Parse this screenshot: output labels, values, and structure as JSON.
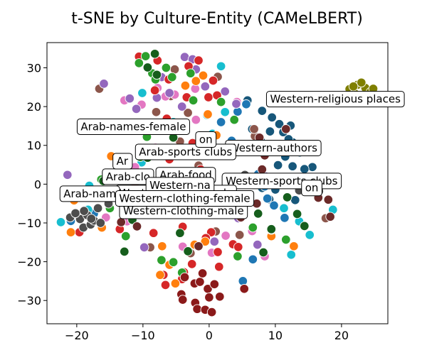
{
  "chart_data": {
    "type": "scatter",
    "title": "t-SNE by Culture-Entity (CAMeLBERT)",
    "xlabel": "",
    "ylabel": "",
    "xlim": [
      -24.5,
      27
    ],
    "ylim": [
      -36,
      36.5
    ],
    "xticks": [
      -20,
      -10,
      0,
      10,
      20
    ],
    "yticks": [
      -30,
      -20,
      -10,
      0,
      10,
      20,
      30
    ],
    "tick_labels": {
      "x": [
        "−20",
        "−10",
        "0",
        "10",
        "20"
      ],
      "y": [
        "−30",
        "−20",
        "−10",
        "0",
        "10",
        "20",
        "30"
      ]
    },
    "grid": false,
    "legend": "none",
    "series": [
      {
        "color": "#7f7f00",
        "points": [
          [
            21.2,
            24.5
          ],
          [
            22.4,
            25.6
          ],
          [
            23.6,
            24.8
          ],
          [
            22.0,
            23.4
          ],
          [
            24.4,
            23.8
          ],
          [
            23.0,
            26.2
          ],
          [
            21.8,
            25.2
          ],
          [
            24.8,
            24.6
          ]
        ]
      },
      {
        "color": "#17577a",
        "points": [
          [
            5.8,
            21.6
          ],
          [
            8.0,
            18.9
          ],
          [
            9.5,
            17.2
          ],
          [
            10.6,
            15.5
          ],
          [
            11.2,
            13.4
          ],
          [
            12.3,
            15.1
          ],
          [
            6.5,
            14.2
          ],
          [
            12.6,
            10.8
          ],
          [
            13.7,
            8.2
          ],
          [
            14.6,
            9.6
          ],
          [
            10.4,
            4.9
          ],
          [
            13.0,
            -4.1
          ],
          [
            14.8,
            -0.7
          ],
          [
            15.6,
            4.4
          ],
          [
            11.5,
            7.1
          ],
          [
            7.8,
            11.2
          ],
          [
            9.2,
            13.6
          ],
          [
            12.0,
            11.6
          ],
          [
            11.2,
            0.8
          ],
          [
            10.0,
            -1.4
          ],
          [
            8.0,
            -1.0
          ],
          [
            12.6,
            4.6
          ],
          [
            14.4,
            3.9
          ],
          [
            9.1,
            -3.9
          ]
        ]
      },
      {
        "color": "#1f77b4",
        "points": [
          [
            5.6,
            20.6
          ],
          [
            4.3,
            18.7
          ],
          [
            1.8,
            16.0
          ],
          [
            3.4,
            11.2
          ],
          [
            8.4,
            -0.6
          ],
          [
            8.8,
            -3.7
          ],
          [
            9.8,
            -5.5
          ],
          [
            11.4,
            -8.7
          ],
          [
            6.6,
            -19.4
          ],
          [
            5.1,
            -25.0
          ],
          [
            -9.4,
            -3.0
          ],
          [
            -6.6,
            -5.6
          ],
          [
            -17.4,
            -7.6
          ],
          [
            -20.9,
            -9.5
          ],
          [
            7.4,
            2.6
          ]
        ]
      },
      {
        "color": "#17becf",
        "points": [
          [
            -10.1,
            23.5
          ],
          [
            1.8,
            30.4
          ],
          [
            -0.3,
            17.8
          ],
          [
            2.4,
            18.6
          ],
          [
            -10.2,
            5.6
          ],
          [
            -18.1,
            -0.4
          ],
          [
            -18.3,
            -6.6
          ],
          [
            -22.4,
            -9.8
          ],
          [
            13.6,
            -9.6
          ],
          [
            12.4,
            -18.2
          ],
          [
            18.7,
            -6.6
          ],
          [
            -5.4,
            16.0
          ],
          [
            -7.6,
            -0.6
          ],
          [
            11.3,
            -6.2
          ],
          [
            15.2,
            -13.1
          ],
          [
            0.5,
            13.0
          ]
        ]
      },
      {
        "color": "#8c564b",
        "points": [
          [
            -16.6,
            24.6
          ],
          [
            -5.2,
            29.6
          ],
          [
            -5.8,
            22.7
          ],
          [
            -3.2,
            18.4
          ],
          [
            -8.0,
            18.6
          ],
          [
            1.3,
            27.7
          ],
          [
            6.9,
            12.4
          ],
          [
            -10.4,
            14.0
          ],
          [
            -4.4,
            11.0
          ],
          [
            -1.6,
            4.8
          ],
          [
            -5.6,
            2.6
          ],
          [
            -16.8,
            -2.6
          ],
          [
            -12.4,
            -3.0
          ],
          [
            -3.8,
            -5.8
          ],
          [
            1.0,
            -12.2
          ],
          [
            4.6,
            -13.1
          ],
          [
            17.6,
            -8.8
          ],
          [
            -8.9,
            -16.3
          ],
          [
            -2.8,
            -17.8
          ],
          [
            6.8,
            14.2
          ]
        ]
      },
      {
        "color": "#e377c2",
        "points": [
          [
            -12.8,
            21.6
          ],
          [
            -10.2,
            20.5
          ],
          [
            -7.8,
            24.8
          ],
          [
            -5.2,
            23.1
          ],
          [
            -2.1,
            24.6
          ],
          [
            4.2,
            21.2
          ],
          [
            -2.0,
            16.6
          ],
          [
            -8.1,
            9.4
          ],
          [
            -11.2,
            4.4
          ],
          [
            -15.6,
            -8.6
          ],
          [
            -12.4,
            -9.6
          ],
          [
            2.5,
            -13.3
          ],
          [
            6.5,
            -12.1
          ],
          [
            8.4,
            -18.6
          ],
          [
            -4.0,
            -16.1
          ],
          [
            0.4,
            -17.7
          ],
          [
            4.3,
            -4.3
          ],
          [
            -6.6,
            22.6
          ]
        ]
      },
      {
        "color": "#9467bd",
        "points": [
          [
            -15.9,
            25.9
          ],
          [
            -12.0,
            22.1
          ],
          [
            -11.0,
            19.4
          ],
          [
            -7.9,
            22.3
          ],
          [
            -6.0,
            23.5
          ],
          [
            -3.7,
            32.8
          ],
          [
            -2.5,
            32.2
          ],
          [
            -2.0,
            29.6
          ],
          [
            -0.6,
            25.2
          ],
          [
            2.4,
            23.9
          ],
          [
            4.1,
            20.7
          ],
          [
            -4.1,
            20.0
          ],
          [
            8.5,
            2.0
          ],
          [
            -21.4,
            2.4
          ],
          [
            -9.1,
            -2.8
          ],
          [
            7.3,
            -15.6
          ],
          [
            -9.8,
            -16.3
          ],
          [
            0.8,
            -14.8
          ],
          [
            4.4,
            -8.8
          ],
          [
            -7.2,
            27.6
          ]
        ]
      },
      {
        "color": "#d62728",
        "points": [
          [
            -10.6,
            32.9
          ],
          [
            -7.8,
            31.9
          ],
          [
            -6.1,
            27.0
          ],
          [
            -3.1,
            30.4
          ],
          [
            -1.6,
            31.9
          ],
          [
            0.6,
            26.7
          ],
          [
            -8.2,
            24.2
          ],
          [
            -3.4,
            22.4
          ],
          [
            -0.1,
            22.4
          ],
          [
            1.2,
            22.9
          ],
          [
            -3.8,
            14.4
          ],
          [
            -2.5,
            10.6
          ],
          [
            -6.0,
            6.4
          ],
          [
            -11.2,
            0.4
          ],
          [
            -19.6,
            -12.4
          ],
          [
            -13.5,
            -11.6
          ],
          [
            -8.4,
            -12.6
          ],
          [
            -4.0,
            -11.0
          ],
          [
            0.3,
            -12.4
          ],
          [
            3.6,
            -15.5
          ],
          [
            -0.5,
            -13.9
          ],
          [
            -6.9,
            -23.4
          ],
          [
            -6.6,
            -26.0
          ],
          [
            -3.8,
            -22.7
          ],
          [
            1.5,
            -21.3
          ],
          [
            -4.1,
            -24.5
          ],
          [
            -2.6,
            -20.6
          ],
          [
            1.3,
            -17.5
          ],
          [
            4.4,
            -16.2
          ],
          [
            -6.4,
            16.9
          ],
          [
            -1.3,
            3.8
          ]
        ]
      },
      {
        "color": "#ff7f0e",
        "points": [
          [
            -0.9,
            28.0
          ],
          [
            -2.0,
            26.6
          ],
          [
            -0.2,
            18.0
          ],
          [
            1.1,
            12.6
          ],
          [
            -4.1,
            8.0
          ],
          [
            -14.8,
            7.2
          ],
          [
            -20.4,
            -4.2
          ],
          [
            -20.9,
            -12.4
          ],
          [
            -16.2,
            -11.2
          ],
          [
            -7.1,
            -16.0
          ],
          [
            -0.6,
            -14.8
          ],
          [
            -6.0,
            -20.8
          ],
          [
            -7.4,
            -23.4
          ],
          [
            -5.1,
            -25.6
          ],
          [
            -2.2,
            -15.6
          ],
          [
            9.4,
            -13.4
          ],
          [
            12.8,
            -16.0
          ],
          [
            -3.6,
            25.4
          ]
        ]
      },
      {
        "color": "#2ca02c",
        "points": [
          [
            -10.6,
            31.2
          ],
          [
            -9.6,
            33.0
          ],
          [
            -8.6,
            28.6
          ],
          [
            -8.1,
            27.0
          ],
          [
            -6.5,
            30.0
          ],
          [
            -5.6,
            27.6
          ],
          [
            -2.8,
            28.6
          ],
          [
            1.8,
            21.2
          ],
          [
            -9.4,
            12.2
          ],
          [
            -10.4,
            7.0
          ],
          [
            -16.3,
            1.2
          ],
          [
            -19.1,
            -1.8
          ],
          [
            -15.0,
            -6.2
          ],
          [
            -12.6,
            -13.4
          ],
          [
            9.4,
            -11.8
          ],
          [
            6.6,
            -11.2
          ],
          [
            11.6,
            -14.3
          ],
          [
            4.3,
            -18.6
          ],
          [
            -5.4,
            -20.1
          ],
          [
            -4.1,
            -22.8
          ],
          [
            -7.2,
            -19.6
          ],
          [
            3.8,
            16.6
          ],
          [
            -2.4,
            21.6
          ]
        ]
      },
      {
        "color": "#165e1c",
        "points": [
          [
            -8.2,
            33.6
          ],
          [
            -9.3,
            30.1
          ],
          [
            -7.9,
            28.2
          ],
          [
            -5.4,
            12.0
          ],
          [
            -9.3,
            6.8
          ],
          [
            -13.6,
            2.4
          ],
          [
            -16.0,
            0.8
          ],
          [
            -15.2,
            -3.2
          ],
          [
            -11.6,
            -9.2
          ],
          [
            -12.8,
            -17.4
          ],
          [
            -4.4,
            -12.6
          ],
          [
            8.2,
            -17.6
          ],
          [
            9.4,
            -11.6
          ],
          [
            13.3,
            -7.7
          ],
          [
            14.4,
            -10.8
          ],
          [
            7.4,
            -7.6
          ],
          [
            11.8,
            -3.4
          ],
          [
            -3.2,
            -17.3
          ]
        ]
      },
      {
        "color": "#6b2a29",
        "points": [
          [
            7.6,
            12.0
          ],
          [
            8.0,
            3.8
          ],
          [
            11.6,
            14.2
          ],
          [
            7.2,
            -5.0
          ],
          [
            4.8,
            -8.6
          ],
          [
            -5.2,
            -4.2
          ],
          [
            -13.3,
            -9.8
          ],
          [
            -10.9,
            -10.9
          ],
          [
            18.3,
            -8.4
          ],
          [
            18.0,
            -4.0
          ],
          [
            16.5,
            -3.5
          ],
          [
            -1.6,
            -16.0
          ],
          [
            8.4,
            7.4
          ],
          [
            15.6,
            0.4
          ],
          [
            -4.4,
            15.0
          ]
        ]
      },
      {
        "color": "#8b1a1a",
        "points": [
          [
            -2.2,
            -25.6
          ],
          [
            -0.2,
            -27.0
          ],
          [
            0.8,
            -25.8
          ],
          [
            -4.2,
            -28.4
          ],
          [
            -4.0,
            -29.8
          ],
          [
            -2.1,
            -30.6
          ],
          [
            -1.8,
            -32.2
          ],
          [
            -0.6,
            -32.4
          ],
          [
            0.0,
            -29.2
          ],
          [
            1.6,
            -29.0
          ],
          [
            -1.4,
            -25.2
          ],
          [
            -3.7,
            -24.0
          ],
          [
            -1.0,
            -23.0
          ],
          [
            5.3,
            -27.0
          ],
          [
            0.4,
            -33.0
          ]
        ]
      },
      {
        "color": "#4d4d4d",
        "points": [
          [
            -21.0,
            -8.6
          ],
          [
            -19.5,
            -9.0
          ],
          [
            -19.0,
            -11.2
          ],
          [
            -18.4,
            -8.0
          ],
          [
            -17.9,
            -10.4
          ],
          [
            -17.4,
            -9.4
          ],
          [
            -16.4,
            -10.0
          ],
          [
            -16.8,
            -6.2
          ],
          [
            -15.2,
            -5.0
          ],
          [
            -20.2,
            -7.5
          ],
          [
            -18.9,
            -6.9
          ],
          [
            -17.8,
            -8.9
          ],
          [
            13.6,
            -1.6
          ],
          [
            16.6,
            -1.8
          ],
          [
            -16.2,
            -2.0
          ],
          [
            5.4,
            2.4
          ]
        ]
      }
    ],
    "annotations": [
      {
        "text": "Western-religious places",
        "x": 9.2,
        "y": 21.0
      },
      {
        "text": "Arab-names-female",
        "x": -19.4,
        "y": 13.9
      },
      {
        "text": "Western-authors",
        "x": 3.0,
        "y": 8.4
      },
      {
        "text": "Arab-sports clubs",
        "x": -10.6,
        "y": 7.4
      },
      {
        "text": "Arab-food",
        "x": -7.5,
        "y": 1.4
      },
      {
        "text": "Western-sports clubs",
        "x": 2.5,
        "y": -0.1
      },
      {
        "text": "Western-names-male",
        "x": -13.6,
        "y": -3.2
      },
      {
        "text": "Western-clothing-male",
        "x": -13.0,
        "y": -7.8
      },
      {
        "text": "Arab-nam",
        "x": -22.0,
        "y": -3.4
      },
      {
        "text": "Arab-clo",
        "x": -15.6,
        "y": 1.0
      },
      {
        "text": "Western-na",
        "x": -9.0,
        "y": -1.2
      },
      {
        "text": "Western-clothing-female",
        "x": -13.6,
        "y": -4.6
      },
      {
        "text": "Ar",
        "x": -14.0,
        "y": 5.0
      },
      {
        "text": "on",
        "x": -1.5,
        "y": 10.6
      },
      {
        "text": "on",
        "x": 14.5,
        "y": -1.9
      }
    ]
  }
}
